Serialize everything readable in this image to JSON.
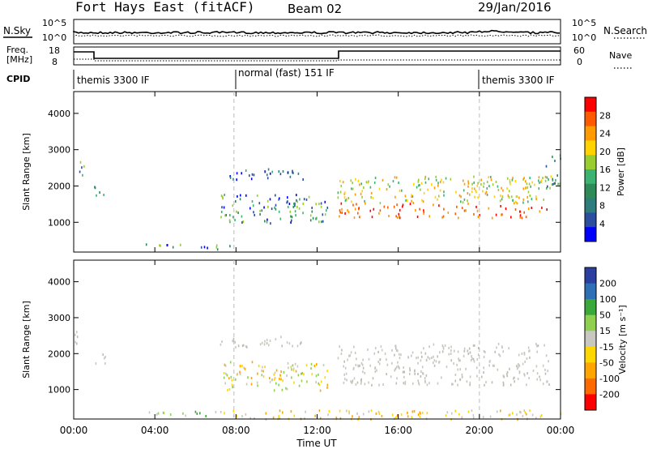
{
  "header": {
    "station": "Fort Hays East (fitACF)",
    "beam": "Beam 02",
    "date": "29/Jan/2016"
  },
  "panel_labels": {
    "nsky": "N.Sky",
    "nsearch": "N.Search",
    "freq_line1": "Freq.",
    "freq_line2": "[MHz]",
    "nave": "Nave",
    "cpid": "CPID"
  },
  "noise_axis": {
    "left": [
      "10^5",
      "10^0"
    ],
    "right": [
      "10^5",
      "10^0"
    ]
  },
  "freq_axis": {
    "left": [
      "18",
      "8"
    ],
    "right": [
      "60",
      "0"
    ]
  },
  "cpid_segments": [
    {
      "label": "themis 3300 IF",
      "start": 0,
      "end": 7.9
    },
    {
      "label": "normal (fast) 151 IF",
      "start": 7.9,
      "end": 20.0
    },
    {
      "label": "themis 3300 IF",
      "start": 20.0,
      "end": 24
    }
  ],
  "power_colorbar": {
    "label": "Power [dB]",
    "ticks": [
      "28",
      "24",
      "20",
      "16",
      "12",
      "8",
      "4"
    ],
    "colors": [
      "#ff0000",
      "#ff5a00",
      "#ff9a00",
      "#ffd200",
      "#9acd32",
      "#3cb371",
      "#2e8b57",
      "#2e7d7d",
      "#2b4f9e",
      "#0000ff"
    ]
  },
  "velocity_colorbar": {
    "label": "Velocity [m s⁻¹]",
    "ticks": [
      "200",
      "100",
      "50",
      "15",
      "-15",
      "-50",
      "-100",
      "-200"
    ],
    "colors": [
      "#2b3fa0",
      "#2f6fb5",
      "#3aa83a",
      "#8fd14f",
      "#c8c8c0",
      "#ffd700",
      "#ffa500",
      "#ff6a00",
      "#ff0000"
    ]
  },
  "chart_data": [
    {
      "type": "heatmap",
      "name": "power",
      "ylabel": "Slant Range [km]",
      "yticks": [
        1000,
        2000,
        3000,
        4000
      ],
      "ylim": [
        180,
        4600
      ],
      "xlim": [
        0,
        24
      ],
      "dashed_markers_hours": [
        7.9,
        20.0
      ],
      "regions": [
        {
          "t0": 0.0,
          "t1": 0.5,
          "r0": 2250,
          "r1": 2700,
          "level": "mid"
        },
        {
          "t0": 1.0,
          "t1": 1.7,
          "r0": 1750,
          "r1": 2050,
          "level": "mid"
        },
        {
          "t0": 3.5,
          "t1": 7.8,
          "r0": 280,
          "r1": 420,
          "level": "low-mid"
        },
        {
          "t0": 7.2,
          "t1": 11.3,
          "r0": 2200,
          "r1": 2500,
          "level": "low"
        },
        {
          "t0": 7.2,
          "t1": 12.5,
          "r0": 1000,
          "r1": 1800,
          "level": "low-mid"
        },
        {
          "t0": 13.0,
          "t1": 23.5,
          "r0": 1150,
          "r1": 2300,
          "level": "high"
        },
        {
          "t0": 23.2,
          "t1": 24.0,
          "r0": 2000,
          "r1": 2900,
          "level": "mid"
        }
      ]
    },
    {
      "type": "heatmap",
      "name": "velocity",
      "ylabel": "Slant Range [km]",
      "yticks": [
        1000,
        2000,
        3000,
        4000
      ],
      "ylim": [
        180,
        4600
      ],
      "xlim": [
        0,
        24
      ],
      "dashed_markers_hours": [
        7.9,
        20.0
      ],
      "regions": [
        {
          "t0": 0.0,
          "t1": 0.5,
          "r0": 2250,
          "r1": 2700,
          "level": "grey"
        },
        {
          "t0": 1.0,
          "t1": 1.7,
          "r0": 1750,
          "r1": 2050,
          "level": "grey"
        },
        {
          "t0": 3.5,
          "t1": 7.8,
          "r0": 280,
          "r1": 420,
          "level": "green"
        },
        {
          "t0": 7.2,
          "t1": 11.3,
          "r0": 2200,
          "r1": 2500,
          "level": "grey"
        },
        {
          "t0": 7.2,
          "t1": 12.5,
          "r0": 1000,
          "r1": 1800,
          "level": "orange-grey"
        },
        {
          "t0": 13.0,
          "t1": 23.5,
          "r0": 1150,
          "r1": 2300,
          "level": "grey"
        },
        {
          "t0": 7.0,
          "t1": 24.0,
          "r0": 200,
          "r1": 450,
          "level": "orange"
        }
      ]
    }
  ],
  "x_axis": {
    "label": "Time UT",
    "ticks": [
      "00:00",
      "04:00",
      "08:00",
      "12:00",
      "16:00",
      "20:00",
      "00:00"
    ]
  }
}
